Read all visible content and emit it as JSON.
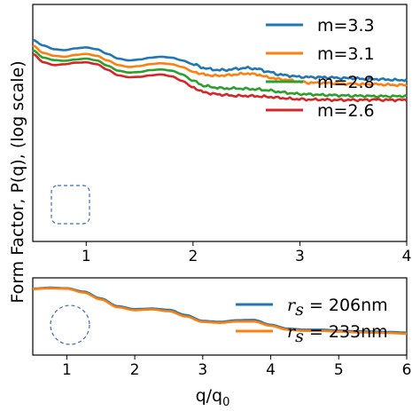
{
  "y_label": "Form Factor, P(q), (log scale)",
  "x_label": "q/q",
  "x_label_sub": "0",
  "chart_data": [
    {
      "type": "line",
      "yscale": "log",
      "xlim": [
        0.5,
        4
      ],
      "xticks": [
        1,
        2,
        3,
        4
      ],
      "x": [
        0.5,
        0.6,
        0.7,
        0.8,
        0.9,
        1.0,
        1.1,
        1.2,
        1.3,
        1.4,
        1.5,
        1.6,
        1.7,
        1.8,
        1.9,
        2.0,
        2.1,
        2.2,
        2.3,
        2.4,
        2.5,
        2.6,
        2.7,
        2.8,
        2.9,
        3.0,
        3.1,
        3.2,
        3.3,
        3.4,
        3.5,
        3.6,
        3.7,
        3.8,
        3.9,
        4.0
      ],
      "series": [
        {
          "name": "m=3.3",
          "color": "#1f77b4",
          "values": [
            0.0,
            0.3,
            0.5,
            0.55,
            0.45,
            0.4,
            0.5,
            0.75,
            1.0,
            1.1,
            1.05,
            0.95,
            0.9,
            0.95,
            1.1,
            1.3,
            1.5,
            1.6,
            1.62,
            1.55,
            1.5,
            1.55,
            1.7,
            1.85,
            1.92,
            1.98,
            2.0,
            2.0,
            2.02,
            2.05,
            2.05,
            2.1,
            2.1,
            2.12,
            2.15,
            2.15
          ]
        },
        {
          "name": "m=3.1",
          "color": "#ff7f0e",
          "values": [
            0.3,
            0.7,
            0.85,
            0.9,
            0.8,
            0.75,
            0.85,
            1.1,
            1.35,
            1.45,
            1.4,
            1.3,
            1.25,
            1.3,
            1.45,
            1.7,
            1.85,
            1.92,
            1.9,
            1.85,
            1.8,
            1.85,
            2.0,
            2.1,
            2.15,
            2.25,
            2.3,
            2.3,
            2.32,
            2.35,
            2.35,
            2.38,
            2.38,
            2.4,
            2.42,
            2.42
          ]
        },
        {
          "name": "m=2.8",
          "color": "#2ca02c",
          "values": [
            0.55,
            0.95,
            1.08,
            1.12,
            1.05,
            1.0,
            1.1,
            1.38,
            1.65,
            1.75,
            1.72,
            1.62,
            1.58,
            1.65,
            1.85,
            2.2,
            2.45,
            2.55,
            2.6,
            2.6,
            2.62,
            2.65,
            2.7,
            2.78,
            2.85,
            2.9,
            2.92,
            2.95,
            2.96,
            2.98,
            3.0,
            3.0,
            3.02,
            3.02,
            3.02,
            3.0
          ]
        },
        {
          "name": "m=2.6",
          "color": "#d62728",
          "values": [
            0.75,
            1.2,
            1.35,
            1.3,
            1.22,
            1.2,
            1.3,
            1.6,
            1.9,
            2.0,
            1.98,
            1.9,
            1.85,
            1.95,
            2.2,
            2.55,
            2.8,
            2.9,
            2.95,
            3.0,
            3.0,
            3.02,
            3.05,
            3.1,
            3.15,
            3.18,
            3.2,
            3.2,
            3.22,
            3.22,
            3.22,
            3.22,
            3.2,
            3.22,
            3.22,
            3.22
          ]
        }
      ]
    },
    {
      "type": "line",
      "yscale": "log",
      "xlim": [
        0.5,
        6
      ],
      "xticks": [
        1,
        2,
        3,
        4,
        5,
        6
      ],
      "x": [
        0.5,
        0.75,
        1.0,
        1.25,
        1.5,
        1.75,
        2.0,
        2.25,
        2.5,
        2.75,
        3.0,
        3.25,
        3.5,
        3.75,
        4.0,
        4.25,
        4.5,
        4.75,
        5.0,
        5.25,
        5.5,
        5.75,
        6.0
      ],
      "series": [
        {
          "name": "r_s = 206nm",
          "label_symbol": "r",
          "label_sub": "s",
          "label_rest": " = 206nm",
          "color": "#1f77b4",
          "values": [
            0.1,
            0.05,
            0.08,
            0.25,
            0.6,
            1.0,
            1.15,
            1.12,
            1.18,
            1.45,
            1.75,
            1.8,
            1.72,
            1.7,
            1.95,
            2.15,
            2.2,
            2.2,
            2.25,
            2.28,
            2.3,
            2.32,
            2.35
          ]
        },
        {
          "name": "r_s = 233nm",
          "label_symbol": "r",
          "label_sub": "s",
          "label_rest": " = 233nm",
          "color": "#ff7f0e",
          "values": [
            0.12,
            0.08,
            0.1,
            0.3,
            0.65,
            1.05,
            1.2,
            1.16,
            1.25,
            1.52,
            1.8,
            1.85,
            1.78,
            1.78,
            2.0,
            2.2,
            2.26,
            2.26,
            2.3,
            2.33,
            2.35,
            2.37,
            2.4
          ]
        }
      ]
    }
  ]
}
